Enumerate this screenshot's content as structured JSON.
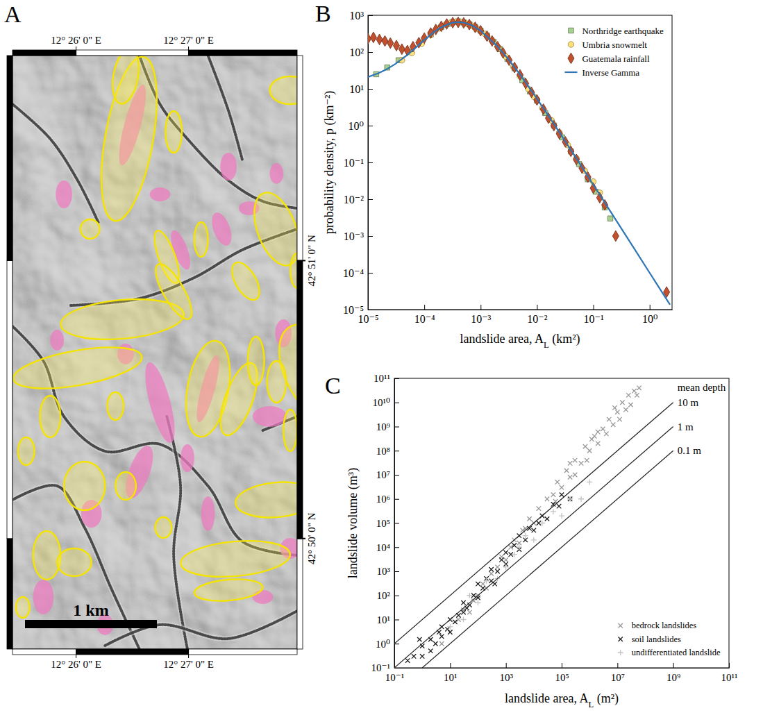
{
  "chart_data": [
    {
      "type": "map",
      "panel": "A",
      "xlim": [
        12.4239,
        12.4661
      ],
      "ylim": [
        42.8267,
        42.8623
      ],
      "xticks": [
        {
          "value": 12.43333,
          "label": "12° 26' 0\" E"
        },
        {
          "value": 12.45,
          "label": "12° 27' 0\" E"
        }
      ],
      "yticks": [
        {
          "value": 42.83333,
          "label": "42° 50' 0\" N"
        },
        {
          "value": 42.85,
          "label": "42° 51' 0\" N"
        }
      ],
      "annotations": [
        {
          "text": "1 km"
        }
      ]
    },
    {
      "type": "scatter",
      "panel": "B",
      "xlabel": "landslide area, AL (km²)",
      "ylabel": "probability density, p (km⁻²)",
      "log": true,
      "legend": "upper right",
      "xlim": [
        1e-05,
        2.5
      ],
      "ylim": [
        1e-05,
        1000
      ],
      "xticks": [
        {
          "value": 1e-05,
          "label": "10⁻⁵"
        },
        {
          "value": 0.0001,
          "label": "10⁻⁴"
        },
        {
          "value": 0.001,
          "label": "10⁻³"
        },
        {
          "value": 0.01,
          "label": "10⁻²"
        },
        {
          "value": 0.1,
          "label": "10⁻¹"
        },
        {
          "value": 1,
          "label": "10⁰"
        }
      ],
      "yticks": [
        {
          "value": 1e-05,
          "label": "10⁻⁵"
        },
        {
          "value": 0.0001,
          "label": "10⁻⁴"
        },
        {
          "value": 0.001,
          "label": "10⁻³"
        },
        {
          "value": 0.01,
          "label": "10⁻²"
        },
        {
          "value": 0.1,
          "label": "10⁻¹"
        },
        {
          "value": 1,
          "label": "10⁰"
        },
        {
          "value": 10,
          "label": "10¹"
        },
        {
          "value": 100,
          "label": "10²"
        },
        {
          "value": 1000,
          "label": "10³"
        }
      ],
      "series": [
        {
          "name": "Northridge earthquake",
          "color": "#a9d18e",
          "marker": "square",
          "x": [
            1.4e-05,
            2.2e-05,
            3.5e-05,
            5.5e-05,
            8.5e-05,
            0.00013,
            0.0002,
            0.00026,
            0.00032,
            0.0004,
            0.0005,
            0.00063,
            0.0008,
            0.001,
            0.0013,
            0.0017,
            0.0022,
            0.003,
            0.004,
            0.0055,
            0.0075,
            0.01,
            0.014,
            0.02,
            0.028,
            0.04,
            0.056,
            0.08,
            0.11,
            0.16,
            0.2
          ],
          "values": [
            25,
            38,
            60,
            100,
            180,
            300,
            480,
            580,
            650,
            680,
            640,
            570,
            480,
            380,
            280,
            190,
            120,
            65,
            36,
            17,
            8.5,
            4.8,
            2.2,
            1.0,
            0.48,
            0.2,
            0.09,
            0.035,
            0.016,
            0.006,
            0.003
          ]
        },
        {
          "name": "Umbria snowmelt",
          "color": "#ffe17a",
          "marker": "circle",
          "x": [
            4e-05,
            6e-05,
            9e-05,
            0.00013,
            0.00018,
            0.00024,
            0.0003,
            0.00037,
            0.00045,
            0.00055,
            0.0007,
            0.0009,
            0.0012,
            0.0016,
            0.0021,
            0.0028,
            0.0038,
            0.005,
            0.007,
            0.009,
            0.0125,
            0.018,
            0.025,
            0.035,
            0.05,
            0.07,
            0.1,
            0.13
          ],
          "values": [
            60,
            95,
            170,
            290,
            440,
            560,
            640,
            670,
            650,
            600,
            520,
            420,
            310,
            210,
            130,
            75,
            40,
            22,
            10,
            6,
            3,
            1.4,
            0.65,
            0.3,
            0.13,
            0.06,
            0.03,
            0.015
          ]
        },
        {
          "name": "Guatemala rainfall",
          "color": "#c0502e",
          "marker": "diamond",
          "x": [
            1e-05,
            1.25e-05,
            1.6e-05,
            2e-05,
            2.5e-05,
            3.2e-05,
            4e-05,
            5e-05,
            6.3e-05,
            8e-05,
            0.0001,
            0.00013,
            0.00016,
            0.0002,
            0.00025,
            0.00032,
            0.0004,
            0.0005,
            0.00063,
            0.0008,
            0.001,
            0.0013,
            0.0016,
            0.002,
            0.0025,
            0.0032,
            0.004,
            0.005,
            0.0063,
            0.008,
            0.01,
            0.013,
            0.016,
            0.02,
            0.025,
            0.032,
            0.04,
            0.05,
            0.063,
            0.08,
            0.1,
            0.13,
            0.16,
            0.25,
            2
          ],
          "values": [
            230,
            250,
            220,
            200,
            175,
            150,
            120,
            110,
            140,
            180,
            240,
            330,
            410,
            500,
            580,
            630,
            640,
            620,
            560,
            470,
            380,
            270,
            200,
            140,
            95,
            60,
            38,
            24,
            14,
            8,
            5,
            2.8,
            1.6,
            1.0,
            0.6,
            0.36,
            0.2,
            0.12,
            0.07,
            0.04,
            0.02,
            0.011,
            0.007,
            0.001,
            3e-05
          ]
        },
        {
          "name": "Inverse Gamma",
          "type": "line",
          "color": "#2e75b6",
          "line_style": "solid",
          "x": [
            1e-05,
            1.5e-05,
            2e-05,
            3e-05,
            5e-05,
            7e-05,
            0.0001,
            0.00015,
            0.0002,
            0.0003,
            0.0004,
            0.0005,
            0.0007,
            0.001,
            0.002,
            0.003,
            0.005,
            0.01,
            0.02,
            0.03,
            0.05,
            0.1,
            0.2,
            0.5,
            1,
            1.5,
            2.3
          ],
          "values": [
            20.9,
            26.2,
            32.2,
            46.5,
            83.8,
            130.8,
            213,
            355,
            475,
            617,
            653,
            632,
            531,
            382,
            142,
            68.3,
            24.5,
            5.41,
            1.11,
            0.43,
            0.129,
            0.0249,
            0.00475,
            0.000529,
            0.0001,
            3.79e-05,
            1.36e-05
          ]
        }
      ]
    },
    {
      "type": "scatter",
      "panel": "C",
      "xlabel": "landslide area, AL (m²)",
      "ylabel": "landslide volume (m³)",
      "log": true,
      "legend": "lower right",
      "xlim": [
        0.1,
        100000000000.0
      ],
      "ylim": [
        0.1,
        100000000000.0
      ],
      "xticks": [
        {
          "value": 0.1,
          "label": "10⁻¹"
        },
        {
          "value": 10,
          "label": "10¹"
        },
        {
          "value": 1000,
          "label": "10³"
        },
        {
          "value": 100000.0,
          "label": "10⁵"
        },
        {
          "value": 10000000.0,
          "label": "10⁷"
        },
        {
          "value": 1000000000.0,
          "label": "10⁹"
        },
        {
          "value": 100000000000.0,
          "label": "10¹¹"
        }
      ],
      "yticks": [
        {
          "value": 0.1,
          "label": "10⁻¹"
        },
        {
          "value": 1,
          "label": "10⁰"
        },
        {
          "value": 10,
          "label": "10¹"
        },
        {
          "value": 100,
          "label": "10²"
        },
        {
          "value": 1000,
          "label": "10³"
        },
        {
          "value": 10000.0,
          "label": "10⁴"
        },
        {
          "value": 100000.0,
          "label": "10⁵"
        },
        {
          "value": 1000000.0,
          "label": "10⁶"
        },
        {
          "value": 10000000.0,
          "label": "10⁷"
        },
        {
          "value": 100000000.0,
          "label": "10⁸"
        },
        {
          "value": 1000000000.0,
          "label": "10⁹"
        },
        {
          "value": 10000000000.0,
          "label": "10¹⁰"
        },
        {
          "value": 100000000000.0,
          "label": "10¹¹"
        }
      ],
      "series": [
        {
          "name": "bedrock landslides",
          "color": "#999999",
          "marker": "x",
          "x": [
            5,
            10,
            20,
            30,
            50,
            70,
            100,
            150,
            200,
            300,
            500,
            700,
            1000,
            1500,
            2000,
            3000,
            5000,
            7000,
            10000.0,
            15000.0,
            20000.0,
            30000.0,
            50000.0,
            70000.0,
            100000.0,
            150000.0,
            200000.0,
            300000.0,
            500000.0,
            700000.0,
            1000000.0,
            1500000.0,
            2000000.0,
            3000000.0,
            4000000.0,
            5000000.0,
            7000000.0,
            10000000.0,
            12000000.0,
            15000000.0,
            20000000.0,
            25000000.0,
            30000000.0,
            40000000.0,
            50000000.0,
            60000000.0,
            2000000.0,
            800000.0,
            300000.0,
            4000.0,
            1200000.0,
            8000000.0,
            200000.0,
            60000.0
          ],
          "values": [
            1,
            3,
            10,
            25,
            20,
            60,
            100,
            300,
            200,
            800,
            1500,
            4000,
            3000,
            10000.0,
            20000.0,
            15000.0,
            60000.0,
            150000.0,
            100000.0,
            400000.0,
            200000.0,
            1000000.0,
            1500000.0,
            5000000.0,
            3000000.0,
            15000000.0,
            8000000.0,
            40000000.0,
            30000000.0,
            150000000.0,
            100000000.0,
            400000000.0,
            200000000.0,
            800000000.0,
            500000000.0,
            2000000000.0,
            1200000000.0,
            4000000000.0,
            2000000000.0,
            10000000000.0,
            5000000000.0,
            20000000000.0,
            8000000000.0,
            30000000000.0,
            20000000000.0,
            40000000000.0,
            600000000.0,
            40000000.0,
            10000000.0,
            50000.0,
            300000000.0,
            6000000000.0,
            30000000.0,
            800000.0
          ]
        },
        {
          "name": "soil landslides",
          "color": "#1e1e1e",
          "marker": "x",
          "x": [
            0.3,
            0.5,
            1,
            1,
            2,
            2,
            3,
            5,
            5,
            8,
            10,
            10,
            15,
            20,
            30,
            30,
            50,
            70,
            100,
            100,
            150,
            200,
            300,
            300,
            500,
            700,
            1000,
            1000,
            1500,
            2000,
            3000,
            3000,
            5000,
            7000,
            10000.0,
            15000.0,
            20000.0,
            30000.0,
            50000.0,
            80000.0,
            100000.0,
            200000.0,
            0.8,
            4,
            40,
            400
          ],
          "values": [
            0.2,
            0.3,
            0.3,
            0.8,
            0.5,
            1.5,
            1,
            2,
            5,
            4,
            3,
            10,
            8,
            15,
            20,
            50,
            40,
            100,
            80,
            300,
            200,
            500,
            400,
            1200,
            1000,
            3000,
            2000,
            6000,
            5000,
            12000.0,
            8000,
            30000.0,
            20000.0,
            60000.0,
            50000.0,
            100000.0,
            200000.0,
            150000.0,
            600000.0,
            500000.0,
            1500000.0,
            1000000.0,
            1.5,
            3,
            30,
            300
          ]
        },
        {
          "name": "undifferentiated landslide",
          "color": "#c4c4c4",
          "marker": "plus",
          "x": [
            10,
            30,
            50,
            100,
            200,
            500,
            1000,
            2000,
            3000,
            5000,
            10000.0,
            20000.0,
            50000.0,
            100000.0,
            200000.0,
            500000.0,
            1000000.0
          ],
          "values": [
            5,
            10,
            100,
            50,
            400,
            500,
            1500,
            5000,
            10000.0,
            30000.0,
            20000.0,
            100000.0,
            300000.0,
            200000.0,
            1000000.0,
            1000000.0,
            5000000.0
          ]
        }
      ],
      "depth_lines": {
        "title": "mean depth",
        "series": [
          {
            "name": "10 m",
            "x": [
              0.1,
              1000000000.0
            ],
            "values": [
              1,
              10000000000.0
            ]
          },
          {
            "name": "1 m",
            "x": [
              0.1,
              1000000000.0
            ],
            "values": [
              0.1,
              1000000000.0
            ]
          },
          {
            "name": "0.1 m",
            "x": [
              1,
              1000000000.0
            ],
            "values": [
              0.1,
              100000000.0
            ]
          }
        ]
      }
    }
  ]
}
